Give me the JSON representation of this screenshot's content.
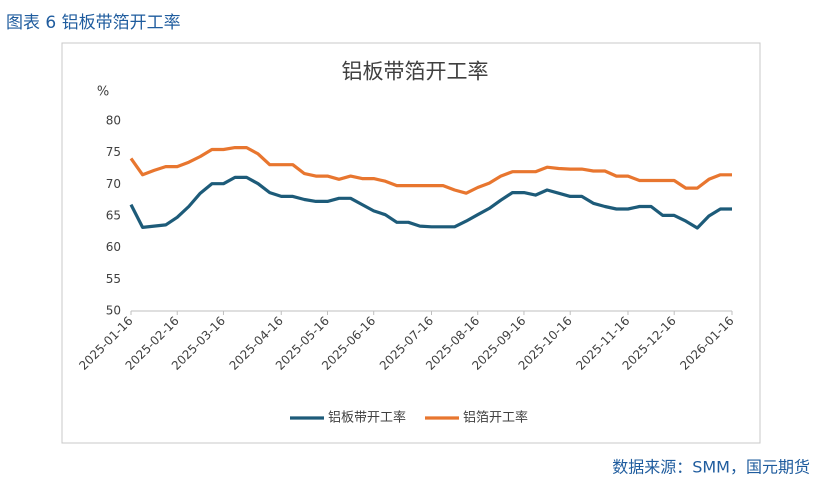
{
  "header": "图表 6 铝板带箔开工率",
  "source": "数据来源：SMM，国元期货",
  "chart_data": {
    "type": "line",
    "title": "铝板带箔开工率",
    "y_label": "%",
    "categories": [
      "2025-01-16",
      null,
      null,
      null,
      "2025-02-16",
      null,
      null,
      null,
      "2025-03-16",
      null,
      null,
      null,
      null,
      "2025-04-16",
      null,
      null,
      null,
      "2025-05-16",
      null,
      null,
      null,
      "2025-06-16",
      null,
      null,
      null,
      null,
      "2025-07-16",
      null,
      null,
      null,
      "2025-08-16",
      null,
      null,
      null,
      "2025-09-16",
      null,
      null,
      null,
      "2025-10-16",
      null,
      null,
      null,
      null,
      "2025-11-16",
      null,
      null,
      null,
      "2025-12-16",
      null,
      null,
      null,
      null,
      "2026-01-16"
    ],
    "series": [
      {
        "name": "铝板带开工率",
        "color": "#1d5b79",
        "values": [
          66.8,
          63.2,
          63.4,
          63.6,
          64.8,
          66.5,
          68.6,
          70.1,
          70.1,
          71.1,
          71.1,
          70.1,
          68.7,
          68.1,
          68.1,
          67.6,
          67.3,
          67.3,
          67.8,
          67.8,
          66.8,
          65.8,
          65.2,
          64.0,
          64.0,
          63.4,
          63.3,
          63.3,
          63.3,
          64.2,
          65.2,
          66.2,
          67.5,
          68.7,
          68.7,
          68.3,
          69.1,
          68.6,
          68.1,
          68.1,
          67.0,
          66.5,
          66.1,
          66.1,
          66.5,
          66.5,
          65.1,
          65.1,
          64.2,
          63.1,
          65.0,
          66.1,
          66.1
        ]
      },
      {
        "name": "铝箔开工率",
        "color": "#e8762f",
        "values": [
          74.1,
          71.5,
          72.2,
          72.8,
          72.8,
          73.5,
          74.4,
          75.5,
          75.5,
          75.8,
          75.8,
          74.8,
          73.1,
          73.1,
          73.1,
          71.7,
          71.3,
          71.3,
          70.8,
          71.3,
          70.9,
          70.9,
          70.5,
          69.8,
          69.8,
          69.8,
          69.8,
          69.8,
          69.1,
          68.6,
          69.5,
          70.2,
          71.3,
          72.0,
          72.0,
          72.0,
          72.7,
          72.5,
          72.4,
          72.4,
          72.1,
          72.1,
          71.3,
          71.3,
          70.6,
          70.6,
          70.6,
          70.6,
          69.4,
          69.4,
          70.8,
          71.5,
          71.5
        ]
      }
    ],
    "ylim": [
      50,
      80
    ],
    "yticks": [
      50,
      55,
      60,
      65,
      70,
      75,
      80
    ],
    "grid": false,
    "legend": "bottom"
  }
}
